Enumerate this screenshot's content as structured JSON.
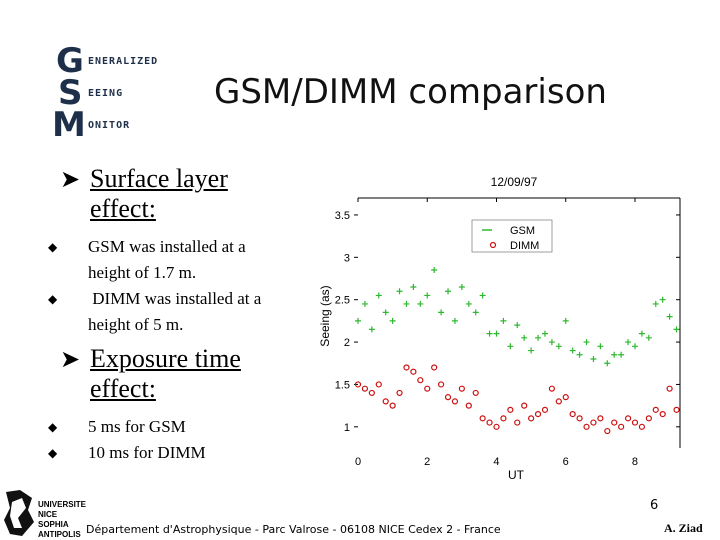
{
  "logo": {
    "letters": [
      "G",
      "S",
      "M"
    ],
    "words": [
      "ENERALIZED",
      "EEING",
      "ONITOR"
    ]
  },
  "title": "GSM/DIMM comparison",
  "sections": [
    {
      "heading": [
        "Surface layer",
        "effect:"
      ],
      "bullets": [
        [
          "GSM was installed at a",
          "height of 1.7 m."
        ],
        [
          " DIMM was installed at a",
          "height of 5 m."
        ]
      ]
    },
    {
      "heading": [
        "Exposure time",
        "effect:"
      ],
      "bullets": [
        [
          "5 ms for GSM"
        ],
        [
          "10 ms for DIMM"
        ]
      ]
    }
  ],
  "footer": {
    "page_number": "6",
    "affiliation": "Département d'Astrophysique - Parc Valrose - 06108 NICE Cedex 2 - France",
    "author": "A. Ziad",
    "univ_logo_lines": [
      "UNIVERSITE",
      "NICE",
      "SOPHIA",
      "ANTIPOLIS"
    ]
  },
  "chart_data": {
    "type": "scatter",
    "title": "12/09/97",
    "xlabel": "UT",
    "ylabel": "Seeing (as)",
    "xlim": [
      0,
      9.3
    ],
    "ylim": [
      0.75,
      3.7
    ],
    "xticks": [
      "0",
      "2",
      "4",
      "6",
      "8"
    ],
    "yticks": [
      "1",
      "1.5",
      "2",
      "2.5",
      "3",
      "3.5"
    ],
    "legend_position": "top-right",
    "series": [
      {
        "name": "GSM",
        "color": "#2eb82e",
        "marker": "plus",
        "x": [
          0.0,
          0.2,
          0.4,
          0.6,
          0.8,
          1.0,
          1.2,
          1.4,
          1.6,
          1.8,
          2.0,
          2.2,
          2.4,
          2.6,
          2.8,
          3.0,
          3.2,
          3.4,
          3.6,
          3.8,
          4.0,
          4.2,
          4.4,
          4.6,
          4.8,
          5.0,
          5.2,
          5.4,
          5.6,
          5.8,
          6.0,
          6.2,
          6.4,
          6.6,
          6.8,
          7.0,
          7.2,
          7.4,
          7.6,
          7.8,
          8.0,
          8.2,
          8.4,
          8.6,
          8.8,
          9.0,
          9.2
        ],
        "values": [
          2.25,
          2.45,
          2.15,
          2.55,
          2.35,
          2.25,
          2.6,
          2.45,
          2.65,
          2.45,
          2.55,
          2.85,
          2.35,
          2.6,
          2.25,
          2.65,
          2.45,
          2.35,
          2.55,
          2.1,
          2.1,
          2.25,
          1.95,
          2.2,
          2.05,
          1.9,
          2.05,
          2.1,
          2.0,
          1.95,
          2.25,
          1.9,
          1.85,
          2.0,
          1.8,
          1.95,
          1.75,
          1.85,
          1.85,
          2.0,
          1.95,
          2.1,
          2.05,
          2.45,
          2.5,
          2.3,
          2.15
        ]
      },
      {
        "name": "DIMM",
        "color": "#cc1111",
        "marker": "circle",
        "x": [
          0.0,
          0.2,
          0.4,
          0.6,
          0.8,
          1.0,
          1.2,
          1.4,
          1.6,
          1.8,
          2.0,
          2.2,
          2.4,
          2.6,
          2.8,
          3.0,
          3.2,
          3.4,
          3.6,
          3.8,
          4.0,
          4.2,
          4.4,
          4.6,
          4.8,
          5.0,
          5.2,
          5.4,
          5.6,
          5.8,
          6.0,
          6.2,
          6.4,
          6.6,
          6.8,
          7.0,
          7.2,
          7.4,
          7.6,
          7.8,
          8.0,
          8.2,
          8.4,
          8.6,
          8.8,
          9.0,
          9.2
        ],
        "values": [
          1.5,
          1.45,
          1.4,
          1.5,
          1.3,
          1.25,
          1.4,
          1.7,
          1.65,
          1.55,
          1.45,
          1.7,
          1.5,
          1.35,
          1.3,
          1.45,
          1.25,
          1.4,
          1.1,
          1.05,
          1.0,
          1.1,
          1.2,
          1.05,
          1.25,
          1.1,
          1.15,
          1.2,
          1.45,
          1.3,
          1.35,
          1.15,
          1.1,
          1.0,
          1.05,
          1.1,
          0.95,
          1.05,
          1.0,
          1.1,
          1.05,
          1.0,
          1.1,
          1.2,
          1.15,
          1.45,
          1.2
        ]
      }
    ]
  }
}
